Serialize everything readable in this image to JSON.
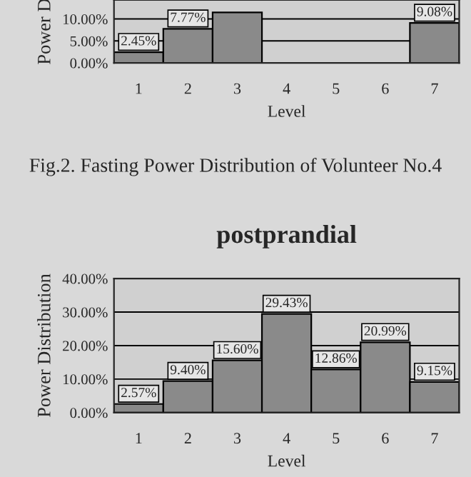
{
  "chart_data": [
    {
      "type": "bar",
      "categories": [
        "1",
        "2",
        "3",
        "4",
        "5",
        "6",
        "7"
      ],
      "values": [
        2.45,
        7.77,
        11.5,
        null,
        null,
        null,
        9.08
      ],
      "value_labels": [
        "2.45%",
        "7.77%",
        null,
        null,
        null,
        null,
        "9.08%"
      ],
      "color": "#8a8a8a",
      "xlabel": "Level",
      "ylabel": "Power D",
      "ylim": [
        0,
        14.3
      ],
      "yticks": [
        {
          "value": 0,
          "label": "0.00%"
        },
        {
          "value": 5,
          "label": "5.00%"
        },
        {
          "value": 10,
          "label": "10.00%"
        }
      ],
      "grid": "y",
      "annotations": [
        "Fig.2. Fasting Power Distribution of Volunteer No.4"
      ]
    },
    {
      "type": "bar",
      "title": "postprandial",
      "categories": [
        "1",
        "2",
        "3",
        "4",
        "5",
        "6",
        "7"
      ],
      "values": [
        2.57,
        9.4,
        15.6,
        29.43,
        12.86,
        20.99,
        9.15
      ],
      "value_labels": [
        "2.57%",
        "9.40%",
        "15.60%",
        "29.43%",
        "12.86%",
        "20.99%",
        "9.15%"
      ],
      "color": "#8a8a8a",
      "xlabel": "Level",
      "ylabel": "Power Distribution",
      "ylim": [
        0,
        40
      ],
      "yticks": [
        {
          "value": 0,
          "label": "0.00%"
        },
        {
          "value": 10,
          "label": "10.00%"
        },
        {
          "value": 20,
          "label": "20.00%"
        },
        {
          "value": 30,
          "label": "30.00%"
        },
        {
          "value": 40,
          "label": "40.00%"
        }
      ],
      "grid": "y"
    }
  ]
}
